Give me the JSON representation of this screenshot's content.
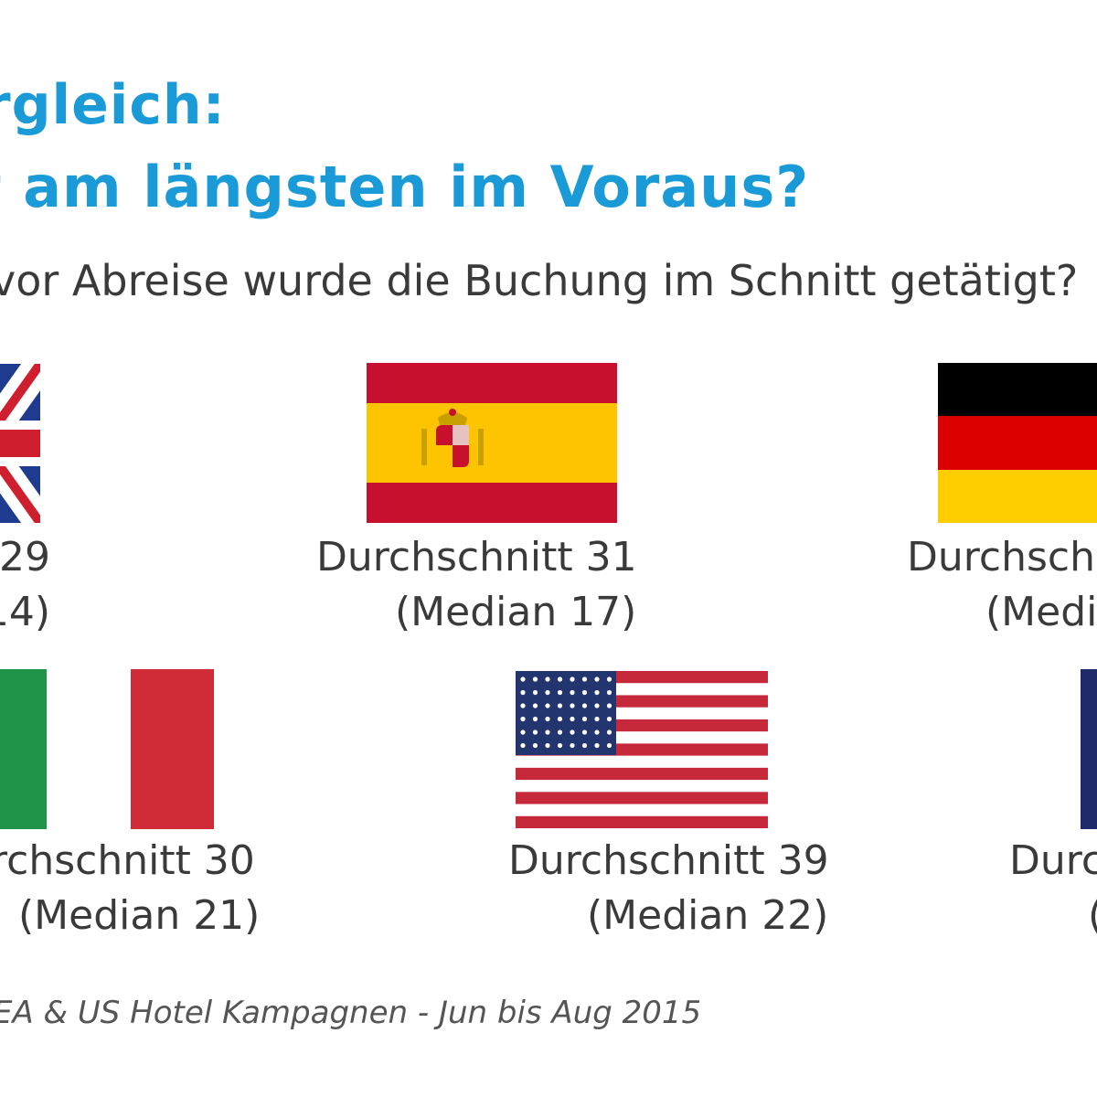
{
  "header": {
    "title_line1": "rgleich:",
    "title_line2": "t am längsten im Voraus?",
    "subtitle": "vor Abreise wurde die Buchung im Schnitt getätigt?"
  },
  "countries": [
    {
      "flag": "uk-flag",
      "line1": "29",
      "line2": "14)"
    },
    {
      "flag": "spain-flag",
      "line1": "Durchschnitt 31",
      "line2": "(Median 17)"
    },
    {
      "flag": "germany-flag",
      "line1": "Durchschn",
      "line2": "(Media"
    },
    {
      "flag": "italy-flag",
      "line1": "rchschnitt 30",
      "line2": "(Median 21)"
    },
    {
      "flag": "usa-flag",
      "line1": "Durchschnitt 39",
      "line2": "(Median 22)"
    },
    {
      "flag": "france-flag",
      "line1": "Durc",
      "line2": "("
    }
  ],
  "footer": {
    "source": "EA & US Hotel Kampagnen - Jun bis Aug 2015"
  },
  "colors": {
    "title": "#1a9ad6",
    "text": "#3a3a3a"
  }
}
